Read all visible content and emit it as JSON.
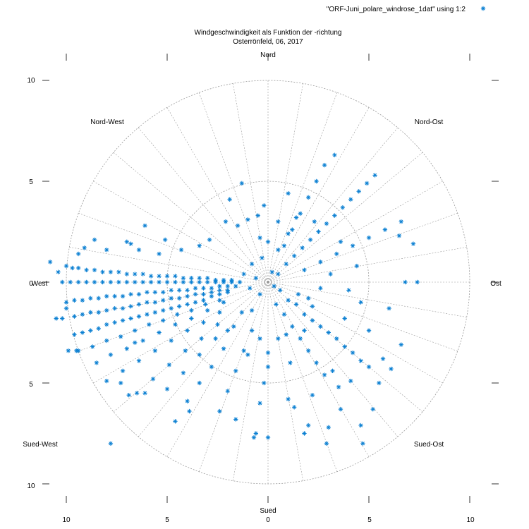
{
  "chart_data": {
    "type": "scatter",
    "coordinate_system": "polar",
    "title_line1": "Windgeschwindigkeit als Funktion der -richtung",
    "title_line2": "Osterrönfeld, 06, 2017",
    "legend": {
      "label": "\"ORF-Juni_polare_windrose_1dat\" using 1:2",
      "placement": "top-right",
      "marker": "*"
    },
    "series_color": "#0a7fd2",
    "grid_color": "#9a9a9a",
    "r_max": 10,
    "r_rings": [
      5,
      10
    ],
    "spoke_step_degrees": 10,
    "direction_labels": {
      "north": "Nord",
      "north_east": "Nord-Ost",
      "east": "Ost",
      "south_east": "Sued-Ost",
      "south": "Sued",
      "south_west": "Sued-West",
      "west": "West",
      "north_west": "Nord-West"
    },
    "xticks": [
      "10",
      "5",
      "0",
      "5",
      "10"
    ],
    "yticks": [
      "10",
      "5",
      "0",
      "5",
      "10"
    ],
    "points_xy_estimated": [
      [
        -10.8,
        1.0
      ],
      [
        -10.4,
        0.5
      ],
      [
        -10.0,
        0.8
      ],
      [
        -9.7,
        0.7
      ],
      [
        -9.4,
        0.7
      ],
      [
        -9.0,
        0.6
      ],
      [
        -8.6,
        0.6
      ],
      [
        -8.2,
        0.5
      ],
      [
        -7.8,
        0.5
      ],
      [
        -7.4,
        0.5
      ],
      [
        -7.0,
        0.4
      ],
      [
        -6.6,
        0.4
      ],
      [
        -6.2,
        0.4
      ],
      [
        -5.8,
        0.3
      ],
      [
        -5.4,
        0.3
      ],
      [
        -5.0,
        0.3
      ],
      [
        -4.6,
        0.3
      ],
      [
        -4.2,
        0.2
      ],
      [
        -3.8,
        0.2
      ],
      [
        -3.4,
        0.2
      ],
      [
        -3.0,
        0.2
      ],
      [
        -2.6,
        0.1
      ],
      [
        -2.2,
        0.1
      ],
      [
        -1.8,
        0.1
      ],
      [
        -10.2,
        0.0
      ],
      [
        -9.8,
        0.0
      ],
      [
        -9.4,
        0.0
      ],
      [
        -9.0,
        0.0
      ],
      [
        -8.6,
        0.0
      ],
      [
        -8.2,
        0.0
      ],
      [
        -7.8,
        0.0
      ],
      [
        -7.4,
        0.0
      ],
      [
        -7.0,
        0.0
      ],
      [
        -6.6,
        0.0
      ],
      [
        -6.2,
        0.0
      ],
      [
        -5.8,
        0.0
      ],
      [
        -5.4,
        0.0
      ],
      [
        -5.0,
        0.0
      ],
      [
        -4.6,
        0.0
      ],
      [
        -4.2,
        0.0
      ],
      [
        -3.8,
        0.0
      ],
      [
        -3.4,
        0.0
      ],
      [
        -3.0,
        0.0
      ],
      [
        -2.6,
        0.0
      ],
      [
        -2.2,
        0.0
      ],
      [
        -1.8,
        0.0
      ],
      [
        -1.4,
        0.0
      ],
      [
        -10.0,
        -1.0
      ],
      [
        -9.6,
        -0.9
      ],
      [
        -9.2,
        -0.9
      ],
      [
        -8.8,
        -0.8
      ],
      [
        -8.4,
        -0.8
      ],
      [
        -8.0,
        -0.7
      ],
      [
        -7.6,
        -0.7
      ],
      [
        -7.2,
        -0.7
      ],
      [
        -6.8,
        -0.6
      ],
      [
        -6.4,
        -0.6
      ],
      [
        -6.0,
        -0.5
      ],
      [
        -5.6,
        -0.5
      ],
      [
        -5.2,
        -0.5
      ],
      [
        -4.8,
        -0.4
      ],
      [
        -4.4,
        -0.4
      ],
      [
        -4.0,
        -0.4
      ],
      [
        -3.6,
        -0.3
      ],
      [
        -3.2,
        -0.3
      ],
      [
        -2.8,
        -0.3
      ],
      [
        -2.4,
        -0.2
      ],
      [
        -2.0,
        -0.2
      ],
      [
        -1.6,
        -0.2
      ],
      [
        -10.5,
        -1.8
      ],
      [
        -10.2,
        -1.8
      ],
      [
        -9.6,
        -1.7
      ],
      [
        -9.2,
        -1.6
      ],
      [
        -8.8,
        -1.5
      ],
      [
        -8.4,
        -1.5
      ],
      [
        -8.0,
        -1.4
      ],
      [
        -7.6,
        -1.3
      ],
      [
        -7.2,
        -1.3
      ],
      [
        -6.8,
        -1.2
      ],
      [
        -6.4,
        -1.1
      ],
      [
        -6.0,
        -1.0
      ],
      [
        -5.6,
        -1.0
      ],
      [
        -5.2,
        -0.9
      ],
      [
        -4.8,
        -0.8
      ],
      [
        -4.4,
        -0.8
      ],
      [
        -4.0,
        -0.7
      ],
      [
        -3.6,
        -0.6
      ],
      [
        -3.2,
        -0.6
      ],
      [
        -2.8,
        -0.5
      ],
      [
        -2.4,
        -0.4
      ],
      [
        -2.0,
        -0.4
      ],
      [
        -9.6,
        -2.6
      ],
      [
        -9.2,
        -2.5
      ],
      [
        -8.8,
        -2.4
      ],
      [
        -8.4,
        -2.3
      ],
      [
        -8.0,
        -2.1
      ],
      [
        -7.6,
        -2.0
      ],
      [
        -7.2,
        -1.9
      ],
      [
        -6.8,
        -1.8
      ],
      [
        -6.4,
        -1.7
      ],
      [
        -6.0,
        -1.6
      ],
      [
        -5.6,
        -1.5
      ],
      [
        -5.2,
        -1.4
      ],
      [
        -4.8,
        -1.3
      ],
      [
        -4.4,
        -1.2
      ],
      [
        -4.0,
        -1.1
      ],
      [
        -3.6,
        -1.0
      ],
      [
        -3.2,
        -0.9
      ],
      [
        -2.8,
        -0.7
      ],
      [
        -2.4,
        -0.6
      ],
      [
        -2.0,
        -0.5
      ],
      [
        -9.4,
        -3.4
      ],
      [
        -8.7,
        -3.2
      ],
      [
        -8.0,
        -2.9
      ],
      [
        -7.3,
        -2.7
      ],
      [
        -6.6,
        -2.4
      ],
      [
        -5.9,
        -2.1
      ],
      [
        -5.2,
        -1.9
      ],
      [
        -4.5,
        -1.6
      ],
      [
        -3.8,
        -1.4
      ],
      [
        -3.1,
        -1.1
      ],
      [
        -2.4,
        -0.9
      ],
      [
        -9.5,
        -3.4
      ],
      [
        -8.5,
        -4.0
      ],
      [
        -7.8,
        -3.6
      ],
      [
        -7.0,
        -3.3
      ],
      [
        -6.2,
        -2.9
      ],
      [
        -5.4,
        -2.5
      ],
      [
        -4.6,
        -2.1
      ],
      [
        -3.8,
        -1.8
      ],
      [
        -3.0,
        -1.4
      ],
      [
        -2.2,
        -1.0
      ],
      [
        -8.0,
        -4.9
      ],
      [
        -7.2,
        -4.4
      ],
      [
        -6.4,
        -3.9
      ],
      [
        -5.6,
        -3.4
      ],
      [
        -4.8,
        -2.9
      ],
      [
        -4.0,
        -2.4
      ],
      [
        -3.2,
        -2.0
      ],
      [
        -2.4,
        -1.5
      ],
      [
        -7.3,
        -5.0
      ],
      [
        -6.5,
        -5.5
      ],
      [
        -5.7,
        -4.8
      ],
      [
        -4.9,
        -4.1
      ],
      [
        -4.1,
        -3.4
      ],
      [
        -3.3,
        -2.8
      ],
      [
        -2.5,
        -2.1
      ],
      [
        -6.9,
        -5.6
      ],
      [
        -5.0,
        -5.3
      ],
      [
        -4.2,
        -4.5
      ],
      [
        -3.4,
        -3.6
      ],
      [
        -2.6,
        -2.8
      ],
      [
        -4.0,
        -5.9
      ],
      [
        -3.4,
        -5.0
      ],
      [
        -2.8,
        -4.2
      ],
      [
        -2.2,
        -3.3
      ],
      [
        -3.9,
        -6.4
      ],
      [
        -4.6,
        -6.9
      ],
      [
        -2.4,
        -6.4
      ],
      [
        -2.0,
        -5.4
      ],
      [
        -1.6,
        -4.4
      ],
      [
        -1.2,
        -3.4
      ],
      [
        -0.8,
        -2.4
      ],
      [
        -1.6,
        -6.8
      ],
      [
        -0.6,
        -7.5
      ],
      [
        -0.4,
        -6.0
      ],
      [
        -0.2,
        -5.0
      ],
      [
        0.0,
        -4.2
      ],
      [
        0.0,
        -3.5
      ],
      [
        0.0,
        -7.7
      ],
      [
        -0.7,
        -7.7
      ],
      [
        1.0,
        -5.8
      ],
      [
        1.3,
        -6.2
      ],
      [
        1.8,
        -7.5
      ],
      [
        2.0,
        -7.1
      ],
      [
        2.9,
        -8.0
      ],
      [
        3.0,
        -7.2
      ],
      [
        3.6,
        -6.3
      ],
      [
        4.1,
        -4.9
      ],
      [
        4.6,
        -7.1
      ],
      [
        4.7,
        -8.0
      ],
      [
        5.2,
        -6.3
      ],
      [
        5.5,
        -5.0
      ],
      [
        5.7,
        -3.8
      ],
      [
        6.1,
        -4.3
      ],
      [
        6.6,
        -3.1
      ],
      [
        6.0,
        -1.3
      ],
      [
        0.6,
        -0.4
      ],
      [
        1.0,
        -0.9
      ],
      [
        1.4,
        -1.1
      ],
      [
        1.8,
        -1.6
      ],
      [
        2.2,
        -1.9
      ],
      [
        2.6,
        -2.2
      ],
      [
        3.0,
        -2.5
      ],
      [
        3.4,
        -2.8
      ],
      [
        3.8,
        -3.2
      ],
      [
        4.2,
        -3.5
      ],
      [
        4.6,
        -3.9
      ],
      [
        5.0,
        -4.2
      ],
      [
        0.8,
        -1.6
      ],
      [
        1.2,
        -2.2
      ],
      [
        1.6,
        -2.8
      ],
      [
        2.0,
        -3.4
      ],
      [
        2.4,
        -4.0
      ],
      [
        2.8,
        -4.6
      ],
      [
        0.5,
        0.4
      ],
      [
        0.9,
        0.9
      ],
      [
        1.3,
        1.3
      ],
      [
        1.7,
        1.7
      ],
      [
        2.1,
        2.1
      ],
      [
        2.5,
        2.5
      ],
      [
        2.9,
        2.9
      ],
      [
        3.3,
        3.3
      ],
      [
        3.7,
        3.7
      ],
      [
        4.1,
        4.1
      ],
      [
        4.5,
        4.5
      ],
      [
        4.9,
        4.9
      ],
      [
        5.3,
        5.3
      ],
      [
        0.8,
        1.8
      ],
      [
        1.2,
        2.6
      ],
      [
        1.6,
        3.4
      ],
      [
        2.0,
        4.2
      ],
      [
        2.4,
        5.0
      ],
      [
        2.8,
        5.8
      ],
      [
        3.3,
        6.3
      ],
      [
        1.8,
        0.6
      ],
      [
        2.6,
        1.0
      ],
      [
        3.4,
        1.4
      ],
      [
        4.2,
        1.8
      ],
      [
        5.0,
        2.2
      ],
      [
        5.8,
        2.6
      ],
      [
        6.6,
        3.0
      ],
      [
        6.5,
        2.3
      ],
      [
        6.8,
        0.0
      ],
      [
        7.4,
        0.0
      ],
      [
        7.2,
        1.9
      ],
      [
        5.0,
        -2.4
      ],
      [
        4.0,
        -0.4
      ],
      [
        4.4,
        0.8
      ],
      [
        3.8,
        -1.8
      ],
      [
        4.6,
        -1.0
      ],
      [
        -0.2,
        3.8
      ],
      [
        -0.5,
        3.3
      ],
      [
        -1.0,
        3.1
      ],
      [
        -1.5,
        2.8
      ],
      [
        -1.9,
        4.1
      ],
      [
        -1.3,
        4.9
      ],
      [
        -2.1,
        3.0
      ],
      [
        -2.9,
        2.1
      ],
      [
        -3.4,
        1.8
      ],
      [
        -4.3,
        1.6
      ],
      [
        -5.1,
        2.1
      ],
      [
        -5.4,
        1.4
      ],
      [
        -6.4,
        1.6
      ],
      [
        -6.8,
        1.9
      ],
      [
        -6.1,
        2.8
      ],
      [
        -7.0,
        2.0
      ],
      [
        -8.0,
        1.6
      ],
      [
        -8.6,
        2.1
      ],
      [
        -9.1,
        1.7
      ],
      [
        -9.4,
        1.4
      ],
      [
        -10.0,
        -1.3
      ],
      [
        -9.9,
        -3.4
      ],
      [
        -6.6,
        -3.0
      ],
      [
        -6.1,
        -5.5
      ],
      [
        -7.8,
        -8.0
      ],
      [
        -0.6,
        0.2
      ],
      [
        -0.9,
        -0.3
      ],
      [
        -1.2,
        0.4
      ],
      [
        -0.4,
        -0.6
      ],
      [
        0.3,
        -0.2
      ],
      [
        0.2,
        0.5
      ],
      [
        -0.3,
        1.2
      ],
      [
        0.5,
        1.6
      ],
      [
        1.0,
        2.4
      ],
      [
        1.4,
        3.2
      ],
      [
        -0.4,
        2.2
      ],
      [
        -1.3,
        -1.5
      ],
      [
        -1.7,
        -2.2
      ],
      [
        -0.8,
        -1.4
      ],
      [
        0.4,
        -1.1
      ],
      [
        1.5,
        -0.6
      ],
      [
        2.2,
        -1.2
      ],
      [
        2.6,
        -0.3
      ],
      [
        0.9,
        -2.6
      ],
      [
        1.8,
        -2.4
      ],
      [
        3.2,
        -4.4
      ],
      [
        3.5,
        -5.2
      ],
      [
        2.2,
        -5.6
      ],
      [
        1.1,
        -4.0
      ],
      [
        0.5,
        -2.8
      ],
      [
        -0.4,
        -2.8
      ],
      [
        -1.0,
        -3.6
      ],
      [
        -2.0,
        -2.4
      ],
      [
        2.0,
        -0.8
      ],
      [
        3.1,
        0.4
      ],
      [
        3.6,
        2.0
      ],
      [
        2.3,
        3.0
      ],
      [
        1.0,
        4.4
      ],
      [
        0.5,
        3.0
      ],
      [
        0.0,
        2.0
      ],
      [
        -0.8,
        0.9
      ]
    ]
  }
}
